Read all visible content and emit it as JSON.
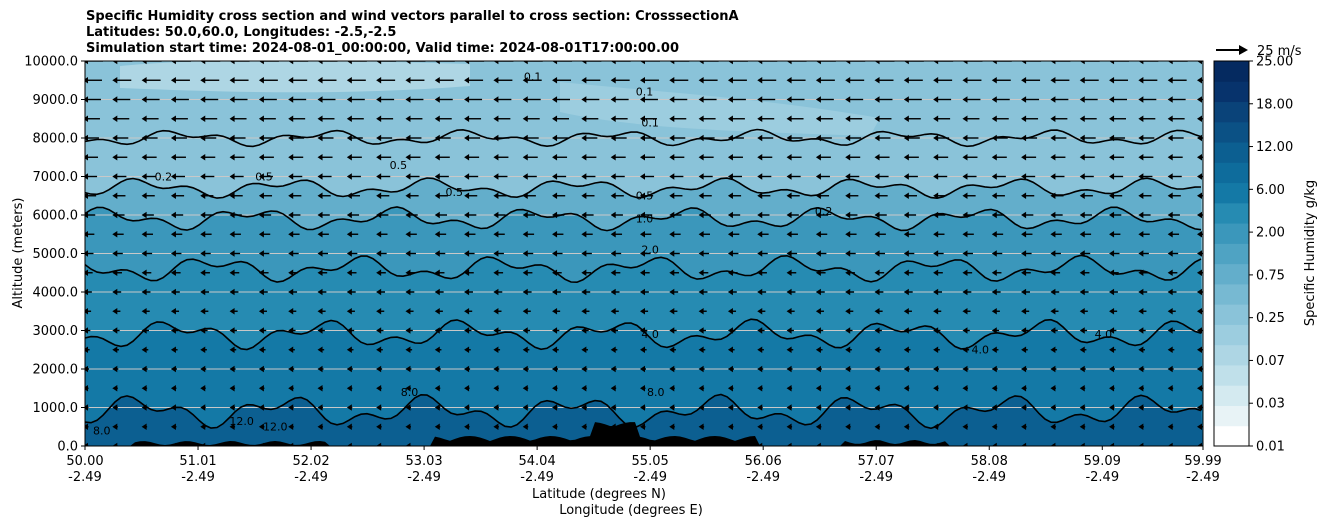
{
  "chart_data": {
    "type": "contour",
    "title": "Specific Humidity cross section and wind vectors parallel to cross section: CrosssectionA",
    "subtitle1": "Latitudes: 50.0,60.0, Longitudes: -2.5,-2.5",
    "subtitle2": "Simulation start time: 2024-08-01_00:00:00, Valid time: 2024-08-01T17:00:00.00",
    "ylabel": "Altitude (meters)",
    "xlabel_lat": "Latitude (degrees N)",
    "xlabel_lon": "Longitude (degrees E)",
    "xlim": [
      50.0,
      59.99
    ],
    "ylim": [
      0,
      10000
    ],
    "grid": "horizontal",
    "x_ticks": [
      {
        "lat": "50.00",
        "lon": "-2.49",
        "value": 50.0
      },
      {
        "lat": "51.01",
        "lon": "-2.49",
        "value": 51.01
      },
      {
        "lat": "52.02",
        "lon": "-2.49",
        "value": 52.02
      },
      {
        "lat": "53.03",
        "lon": "-2.49",
        "value": 53.03
      },
      {
        "lat": "54.04",
        "lon": "-2.49",
        "value": 54.04
      },
      {
        "lat": "55.05",
        "lon": "-2.49",
        "value": 55.05
      },
      {
        "lat": "56.06",
        "lon": "-2.49",
        "value": 56.06
      },
      {
        "lat": "57.07",
        "lon": "-2.49",
        "value": 57.07
      },
      {
        "lat": "58.08",
        "lon": "-2.49",
        "value": 58.08
      },
      {
        "lat": "59.09",
        "lon": "-2.49",
        "value": 59.09
      },
      {
        "lat": "59.99",
        "lon": "-2.49",
        "value": 59.99
      }
    ],
    "y_ticks": [
      "0.0",
      "1000.0",
      "2000.0",
      "3000.0",
      "4000.0",
      "5000.0",
      "6000.0",
      "7000.0",
      "8000.0",
      "9000.0",
      "10000.0"
    ],
    "colorbar": {
      "label": "Specific Humidity g/kg",
      "tick_labels": [
        "0.01",
        "0.03",
        "0.07",
        "0.25",
        "0.75",
        "2.00",
        "6.00",
        "12.00",
        "18.00",
        "25.00"
      ],
      "levels": [
        "0.01",
        "0.02",
        "0.03",
        "0.05",
        "0.07",
        "0.1",
        "0.25",
        "0.5",
        "0.75",
        "1",
        "2",
        "4",
        "6",
        "8",
        "12",
        "15",
        "18",
        "21",
        "25"
      ],
      "colors": [
        "#ffffff",
        "#e8f3f6",
        "#d4eaf0",
        "#c0e0ea",
        "#aed6e4",
        "#9ccddf",
        "#8ac3d9",
        "#77b9d2",
        "#63aecb",
        "#4fa3c3",
        "#3b97bb",
        "#268bb2",
        "#1479a6",
        "#0e6c9c",
        "#0c5f91",
        "#0b5185",
        "#0a4379",
        "#07336c",
        "#052a60"
      ]
    },
    "humidity_layers": [
      {
        "value": 8.0,
        "top_m": 900
      },
      {
        "value": 4.0,
        "top_m": 2900
      },
      {
        "value": 2.0,
        "top_m": 4600
      },
      {
        "value": 1.0,
        "top_m": 5900
      },
      {
        "value": 0.5,
        "top_m": 6700
      },
      {
        "value": 0.2,
        "top_m": 8000
      },
      {
        "value": 0.1,
        "top_m": 10000
      }
    ],
    "contour_labels": [
      {
        "text": "0.1",
        "x": 54.0,
        "y": 9500
      },
      {
        "text": "0.1",
        "x": 55.0,
        "y": 9100
      },
      {
        "text": "0.1",
        "x": 55.05,
        "y": 8300
      },
      {
        "text": "0.2",
        "x": 50.7,
        "y": 6900
      },
      {
        "text": "0.5",
        "x": 51.6,
        "y": 6900
      },
      {
        "text": "0.5",
        "x": 52.8,
        "y": 7200
      },
      {
        "text": "0.5",
        "x": 53.3,
        "y": 6500
      },
      {
        "text": "0.5",
        "x": 55.0,
        "y": 6400
      },
      {
        "text": "0.2",
        "x": 56.6,
        "y": 6000
      },
      {
        "text": "1.0",
        "x": 55.0,
        "y": 5800
      },
      {
        "text": "2.0",
        "x": 55.05,
        "y": 5000
      },
      {
        "text": "4.0",
        "x": 55.05,
        "y": 2800
      },
      {
        "text": "4.0",
        "x": 59.1,
        "y": 2800
      },
      {
        "text": "4.0",
        "x": 58.0,
        "y": 2400
      },
      {
        "text": "8.0",
        "x": 55.1,
        "y": 1300
      },
      {
        "text": "8.0",
        "x": 52.9,
        "y": 1300
      },
      {
        "text": "8.0",
        "x": 50.15,
        "y": 300
      },
      {
        "text": "12.0",
        "x": 51.4,
        "y": 550
      },
      {
        "text": "12.0",
        "x": 51.7,
        "y": 400
      }
    ],
    "wind": {
      "reference_label": "25 m/s",
      "reference_speed": 25,
      "direction": "toward lower latitude"
    }
  }
}
